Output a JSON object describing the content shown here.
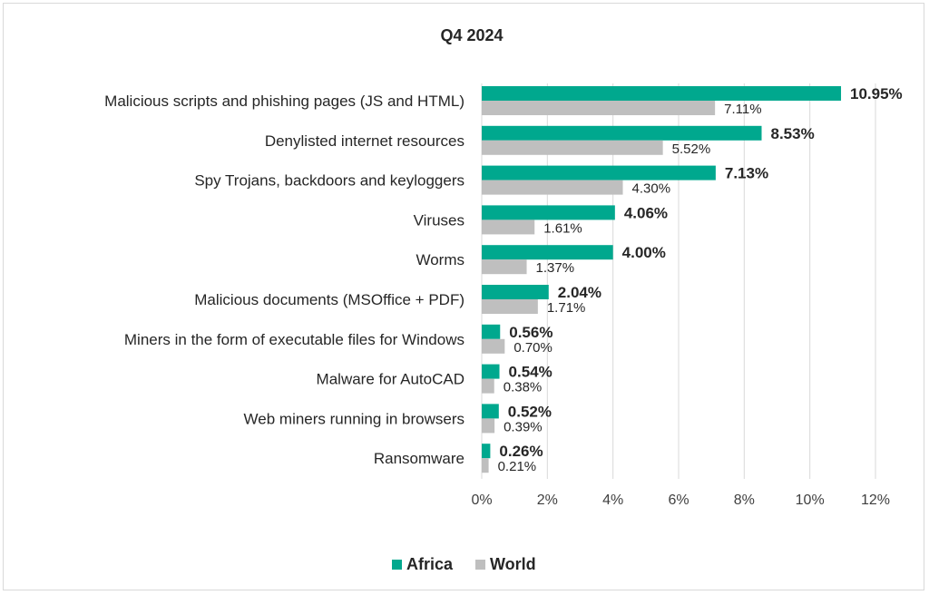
{
  "chart_data": {
    "type": "bar",
    "orientation": "horizontal",
    "title": "Q4 2024",
    "categories": [
      "Malicious scripts and phishing pages (JS and HTML)",
      "Denylisted internet resources",
      "Spy Trojans, backdoors and keyloggers",
      "Viruses",
      "Worms",
      "Malicious documents (MSOffice + PDF)",
      "Miners in the form of executable files for Windows",
      "Malware for AutoCAD",
      "Web miners running in browsers",
      "Ransomware"
    ],
    "series": [
      {
        "name": "Africa",
        "color": "#00a88e",
        "values": [
          10.95,
          8.53,
          7.13,
          4.06,
          4.0,
          2.04,
          0.56,
          0.54,
          0.52,
          0.26
        ],
        "labels": [
          "10.95%",
          "8.53%",
          "7.13%",
          "4.06%",
          "4.00%",
          "2.04%",
          "0.56%",
          "0.54%",
          "0.52%",
          "0.26%"
        ]
      },
      {
        "name": "World",
        "color": "#bfbfbf",
        "values": [
          7.11,
          5.52,
          4.3,
          1.61,
          1.37,
          1.71,
          0.7,
          0.38,
          0.39,
          0.21
        ],
        "labels": [
          "7.11%",
          "5.52%",
          "4.30%",
          "1.61%",
          "1.37%",
          "1.71%",
          "0.70%",
          "0.38%",
          "0.39%",
          "0.21%"
        ]
      }
    ],
    "xlim": [
      0,
      12
    ],
    "xticks": [
      0,
      2,
      4,
      6,
      8,
      10,
      12
    ],
    "xtick_labels": [
      "0%",
      "2%",
      "4%",
      "6%",
      "8%",
      "10%",
      "12%"
    ],
    "grid": true,
    "legend_position": "bottom-center"
  }
}
